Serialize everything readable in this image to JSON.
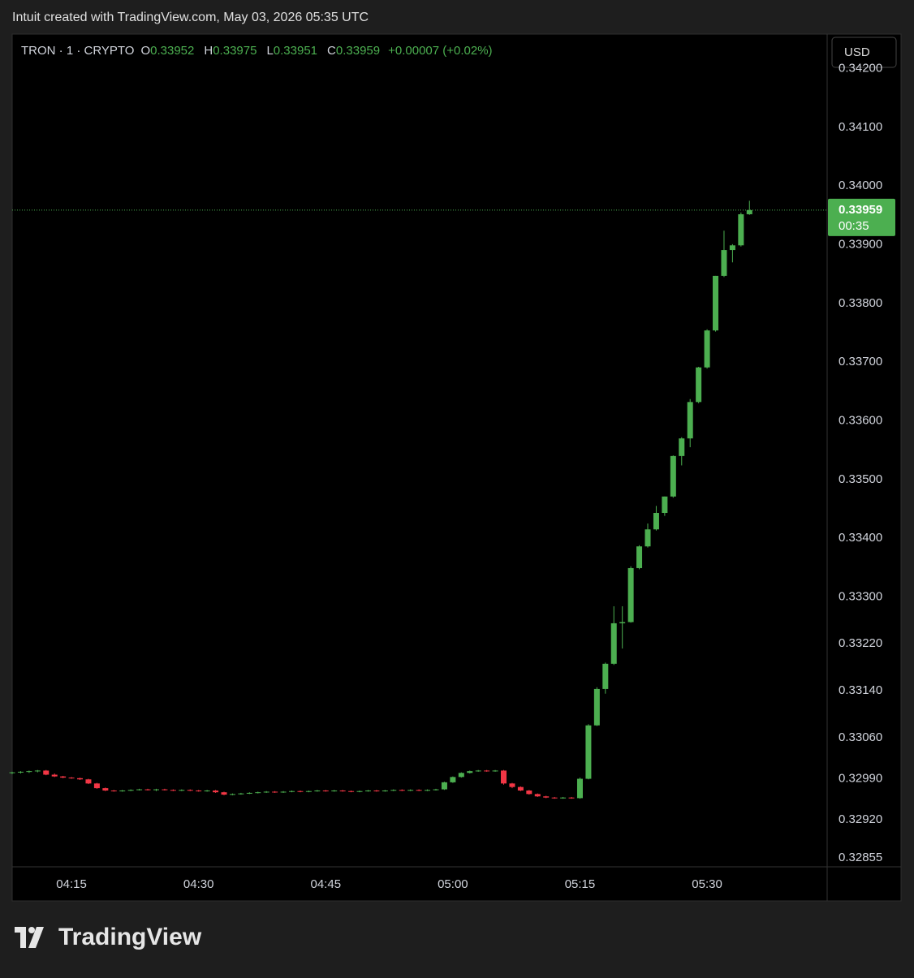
{
  "chart_data": {
    "type": "candlestick",
    "header": "Intuit created with TradingView.com, May 03, 2026 05:35 UTC",
    "symbol": "TRON · 1 · CRYPTO",
    "legend": [
      {
        "label": "O",
        "value": "0.33952"
      },
      {
        "label": "H",
        "value": "0.33975"
      },
      {
        "label": "L",
        "value": "0.33951"
      },
      {
        "label": "C",
        "value": "0.33959"
      }
    ],
    "change": "+0.00007 (+0.02%)",
    "currency": "USD",
    "countdown": "00:35",
    "brand": "TradingView",
    "up_color": "#4caf50",
    "down_color": "#f23645",
    "last_price_line": true,
    "categories": [
      null,
      null,
      null,
      null,
      null,
      null,
      null,
      "04:15",
      null,
      null,
      null,
      null,
      null,
      null,
      null,
      null,
      null,
      null,
      null,
      null,
      null,
      null,
      "04:30",
      null,
      null,
      null,
      null,
      null,
      null,
      null,
      null,
      null,
      null,
      null,
      null,
      null,
      null,
      "04:45",
      null,
      null,
      null,
      null,
      null,
      null,
      null,
      null,
      null,
      null,
      null,
      null,
      null,
      null,
      "05:00",
      null,
      null,
      null,
      null,
      null,
      null,
      null,
      null,
      null,
      null,
      null,
      null,
      null,
      null,
      "05:15",
      null,
      null,
      null,
      null,
      null,
      null,
      null,
      null,
      null,
      null,
      null,
      null,
      null,
      null,
      "05:30",
      null,
      null,
      null,
      null,
      null
    ],
    "series": {
      "open": [
        0.33,
        0.33001,
        0.33002,
        0.33003,
        0.33004,
        0.32997,
        0.32994,
        0.32992,
        0.32991,
        0.32989,
        0.32982,
        0.32974,
        0.3297,
        0.32969,
        0.3297,
        0.32971,
        0.32972,
        0.32971,
        0.32972,
        0.32971,
        0.3297,
        0.32971,
        0.3297,
        0.32969,
        0.3297,
        0.32967,
        0.32963,
        0.32964,
        0.32965,
        0.32966,
        0.32967,
        0.32968,
        0.32967,
        0.32968,
        0.32969,
        0.32968,
        0.32969,
        0.3297,
        0.32969,
        0.3297,
        0.32969,
        0.32968,
        0.32969,
        0.3297,
        0.32969,
        0.3297,
        0.32971,
        0.3297,
        0.32971,
        0.3297,
        0.32971,
        0.32972,
        0.32984,
        0.32993,
        0.33,
        0.33003,
        0.33004,
        0.33003,
        0.33004,
        0.32982,
        0.32976,
        0.3297,
        0.32964,
        0.3296,
        0.32958,
        0.32957,
        0.32958,
        0.32957,
        0.3299,
        0.33081,
        0.33143,
        0.33186,
        0.33255,
        0.33257,
        0.33349,
        0.33386,
        0.33415,
        0.33443,
        0.33471,
        0.3354,
        0.3357,
        0.33632,
        0.33691,
        0.33754,
        0.33847,
        0.33891,
        0.33899,
        0.33952
      ],
      "high": [
        0.33002,
        0.33003,
        0.33004,
        0.33005,
        0.33005,
        0.32999,
        0.32995,
        0.32993,
        0.32992,
        0.3299,
        0.32983,
        0.32975,
        0.32971,
        0.32971,
        0.32972,
        0.32973,
        0.32973,
        0.32973,
        0.32973,
        0.32972,
        0.32972,
        0.32972,
        0.32971,
        0.32971,
        0.32971,
        0.32968,
        0.32965,
        0.32966,
        0.32967,
        0.32968,
        0.32969,
        0.32969,
        0.32969,
        0.3297,
        0.3297,
        0.3297,
        0.32971,
        0.32971,
        0.32971,
        0.32971,
        0.3297,
        0.3297,
        0.32971,
        0.32971,
        0.32971,
        0.32972,
        0.32972,
        0.32972,
        0.32972,
        0.32972,
        0.32973,
        0.32985,
        0.32994,
        0.33001,
        0.33004,
        0.33005,
        0.33005,
        0.33005,
        0.33005,
        0.32983,
        0.32977,
        0.32971,
        0.32965,
        0.32961,
        0.32959,
        0.32959,
        0.32959,
        0.32992,
        0.33083,
        0.33146,
        0.33188,
        0.33284,
        0.33284,
        0.33352,
        0.33388,
        0.33425,
        0.33455,
        0.33471,
        0.33541,
        0.33572,
        0.33637,
        0.33692,
        0.33756,
        0.33847,
        0.33924,
        0.33901,
        0.33955,
        0.33975
      ],
      "low": [
        0.32998,
        0.32999,
        0.33,
        0.33001,
        0.32996,
        0.32993,
        0.32991,
        0.3299,
        0.32988,
        0.32981,
        0.32973,
        0.32969,
        0.32968,
        0.32968,
        0.32969,
        0.3297,
        0.3297,
        0.32969,
        0.3297,
        0.32969,
        0.32969,
        0.32969,
        0.32968,
        0.32968,
        0.32966,
        0.32962,
        0.32962,
        0.32963,
        0.32964,
        0.32965,
        0.32966,
        0.32966,
        0.32966,
        0.32967,
        0.32967,
        0.32967,
        0.32968,
        0.32968,
        0.32968,
        0.32968,
        0.32967,
        0.32967,
        0.32968,
        0.32968,
        0.32968,
        0.32969,
        0.32969,
        0.32969,
        0.32969,
        0.32969,
        0.3297,
        0.32971,
        0.32983,
        0.32992,
        0.32999,
        0.33002,
        0.33002,
        0.33002,
        0.3298,
        0.32974,
        0.32969,
        0.32963,
        0.32959,
        0.32957,
        0.32956,
        0.32956,
        0.32956,
        0.32956,
        0.32989,
        0.3308,
        0.33135,
        0.33184,
        0.33212,
        0.33256,
        0.33347,
        0.33384,
        0.33413,
        0.33438,
        0.33469,
        0.33524,
        0.33555,
        0.3363,
        0.33689,
        0.33752,
        0.33845,
        0.3387,
        0.33897,
        0.33951
      ],
      "close": [
        0.33001,
        0.33002,
        0.33003,
        0.33004,
        0.32997,
        0.32994,
        0.32992,
        0.32991,
        0.32989,
        0.32982,
        0.32974,
        0.3297,
        0.32969,
        0.3297,
        0.32971,
        0.32972,
        0.32971,
        0.32972,
        0.32971,
        0.3297,
        0.32971,
        0.3297,
        0.32969,
        0.3297,
        0.32967,
        0.32963,
        0.32964,
        0.32965,
        0.32966,
        0.32967,
        0.32968,
        0.32967,
        0.32968,
        0.32969,
        0.32968,
        0.32969,
        0.3297,
        0.32969,
        0.3297,
        0.32969,
        0.32968,
        0.32969,
        0.3297,
        0.32969,
        0.3297,
        0.32971,
        0.3297,
        0.32971,
        0.3297,
        0.32971,
        0.32972,
        0.32984,
        0.32993,
        0.33,
        0.33003,
        0.33004,
        0.33003,
        0.33004,
        0.32982,
        0.32976,
        0.3297,
        0.32964,
        0.3296,
        0.32958,
        0.32957,
        0.32958,
        0.32957,
        0.3299,
        0.33081,
        0.33143,
        0.33186,
        0.33255,
        0.33257,
        0.33349,
        0.33386,
        0.33415,
        0.33443,
        0.33471,
        0.3354,
        0.3357,
        0.33632,
        0.33691,
        0.33754,
        0.33847,
        0.33891,
        0.33899,
        0.33952,
        0.33959
      ]
    },
    "ylim": [
      0.3284,
      0.34259
    ],
    "yticks": [
      {
        "value": 0.342,
        "label": "0.34200"
      },
      {
        "value": 0.341,
        "label": "0.34100"
      },
      {
        "value": 0.34,
        "label": "0.34000"
      },
      {
        "value": 0.339,
        "label": "0.33900"
      },
      {
        "value": 0.338,
        "label": "0.33800"
      },
      {
        "value": 0.337,
        "label": "0.33700"
      },
      {
        "value": 0.336,
        "label": "0.33600"
      },
      {
        "value": 0.335,
        "label": "0.33500"
      },
      {
        "value": 0.334,
        "label": "0.33400"
      },
      {
        "value": 0.333,
        "label": "0.33300"
      },
      {
        "value": 0.3322,
        "label": "0.33220"
      },
      {
        "value": 0.3314,
        "label": "0.33140"
      },
      {
        "value": 0.3306,
        "label": "0.33060"
      },
      {
        "value": 0.3299,
        "label": "0.32990"
      },
      {
        "value": 0.3292,
        "label": "0.32920"
      },
      {
        "value": 0.32855,
        "label": "0.32855"
      }
    ]
  }
}
